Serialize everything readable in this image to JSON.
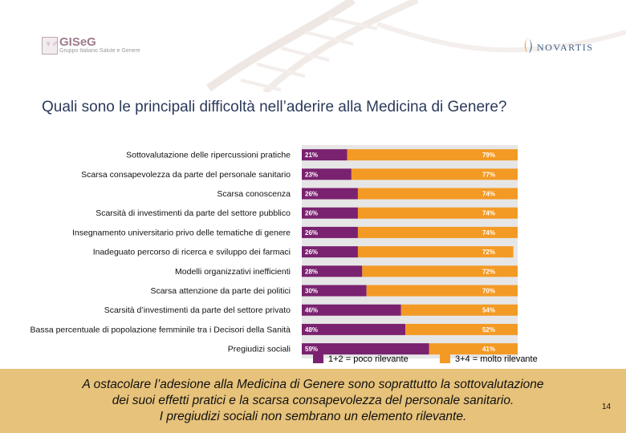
{
  "header": {
    "logo_left_name": "GISeG",
    "logo_left_subtitle": "Gruppo Italiano Salute e Genere",
    "logo_right_name": "NOVARTIS"
  },
  "title": "Quali sono le principali difficoltà nell’aderire alla Medicina di Genere?",
  "chart_data": {
    "type": "bar",
    "stacked": true,
    "orientation": "horizontal",
    "xlim": [
      0,
      100
    ],
    "categories": [
      "Sottovalutazione delle ripercussioni pratiche",
      "Scarsa consapevolezza da parte del personale sanitario",
      "Scarsa conoscenza",
      "Scarsità di investimenti da parte del settore pubblico",
      "Insegnamento universitario privo delle tematiche di genere",
      "Inadeguato percorso di ricerca e sviluppo dei farmaci",
      "Modelli organizzativi inefficienti",
      "Scarsa attenzione da parte dei politici",
      "Scarsità d’investimenti da parte del settore privato",
      "Bassa percentuale di popolazione femminile tra i Decisori della Sanità",
      "Pregiudizi sociali"
    ],
    "series": [
      {
        "name": "1+2 = poco rilevante",
        "color": "#7a2270",
        "values": [
          21,
          23,
          26,
          26,
          26,
          26,
          28,
          30,
          46,
          48,
          59
        ],
        "labels": [
          "21%",
          "23%",
          "26%",
          "26%",
          "26%",
          "26%",
          "28%",
          "30%",
          "46%",
          "48%",
          "59%"
        ]
      },
      {
        "name": "3+4 = molto rilevante",
        "color": "#f39a25",
        "values": [
          79,
          77,
          74,
          74,
          74,
          72,
          72,
          70,
          54,
          52,
          41
        ],
        "labels": [
          "79%",
          "77%",
          "74%",
          "74%",
          "74%",
          "72%",
          "72%",
          "70%",
          "54%",
          "52%",
          "41%"
        ]
      }
    ]
  },
  "footer": {
    "message_line1": "A ostacolare l’adesione alla Medicina di Genere sono soprattutto la sottovalutazione",
    "message_line2": "dei suoi effetti pratici e la scarsa consapevolezza del personale sanitario.",
    "message_line3": "I pregiudizi sociali non sembrano un elemento rilevante.",
    "page_number": "14"
  }
}
